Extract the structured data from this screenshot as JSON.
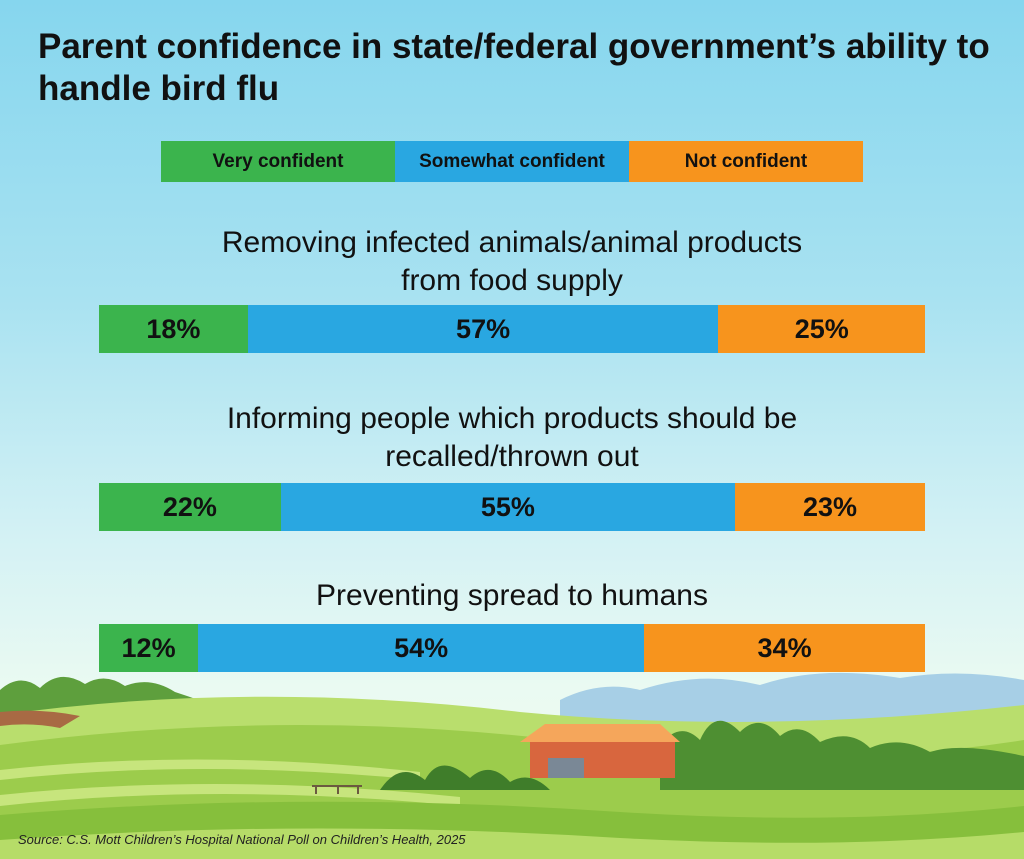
{
  "chart_data": {
    "type": "bar",
    "orientation": "horizontal-stacked",
    "title": "Parent confidence in state/federal government’s ability to handle bird flu",
    "series": [
      {
        "name": "Very confident",
        "color": "#3bb44d"
      },
      {
        "name": "Somewhat confident",
        "color": "#29a7e1"
      },
      {
        "name": "Not confident",
        "color": "#f7941d"
      }
    ],
    "categories": [
      "Removing infected animals/animal products\nfrom food supply",
      "Informing people which products should be\nrecalled/thrown out",
      "Preventing spread to humans"
    ],
    "values": [
      [
        18,
        57,
        25
      ],
      [
        22,
        55,
        23
      ],
      [
        12,
        54,
        34
      ]
    ],
    "value_labels": [
      [
        "18%",
        "57%",
        "25%"
      ],
      [
        "22%",
        "55%",
        "23%"
      ],
      [
        "12%",
        "54%",
        "34%"
      ]
    ],
    "unit": "%",
    "xlim": [
      0,
      100
    ],
    "grid": false,
    "legend_position": "top"
  },
  "source": "Source: C.S. Mott Children’s Hospital National Poll on Children’s Health, 2025",
  "scene_icons": [
    "farm-hills-illustration",
    "barn-icon",
    "tree-line-icon"
  ]
}
